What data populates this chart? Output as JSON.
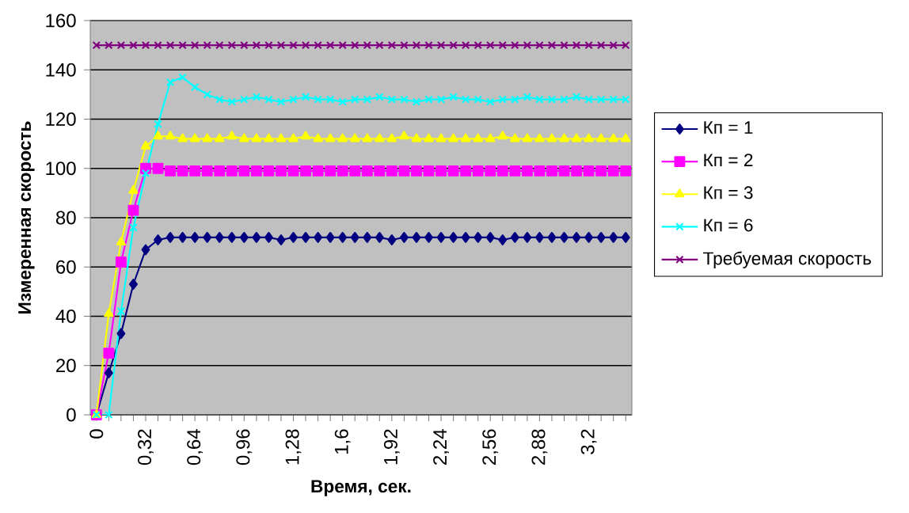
{
  "chart_data": {
    "type": "line",
    "xlabel": "Время, сек.",
    "ylabel": "Измеренная скорость",
    "categories": [
      "0",
      null,
      null,
      null,
      "0,32",
      null,
      null,
      null,
      "0,64",
      null,
      null,
      null,
      "0,96",
      null,
      null,
      null,
      "1,28",
      null,
      null,
      null,
      "1,6",
      null,
      null,
      null,
      "1,92",
      null,
      null,
      null,
      "2,24",
      null,
      null,
      null,
      "2,56",
      null,
      null,
      null,
      "2,88",
      null,
      null,
      null,
      "3,2",
      null,
      null,
      null
    ],
    "series": [
      {
        "name": "Кп = 1",
        "color": "#000080",
        "marker": "diamond",
        "values": [
          0,
          17,
          33,
          53,
          67,
          71,
          72,
          72,
          72,
          72,
          72,
          72,
          72,
          72,
          72,
          71,
          72,
          72,
          72,
          72,
          72,
          72,
          72,
          72,
          71,
          72,
          72,
          72,
          72,
          72,
          72,
          72,
          72,
          71,
          72,
          72,
          72,
          72,
          72,
          72,
          72,
          72,
          72,
          72
        ]
      },
      {
        "name": "Кп = 2",
        "color": "#ff00ff",
        "marker": "square",
        "values": [
          0,
          25,
          62,
          83,
          100,
          100,
          99,
          99,
          99,
          99,
          99,
          99,
          99,
          99,
          99,
          99,
          99,
          99,
          99,
          99,
          99,
          99,
          99,
          99,
          99,
          99,
          99,
          99,
          99,
          99,
          99,
          99,
          99,
          99,
          99,
          99,
          99,
          99,
          99,
          99,
          99,
          99,
          99,
          99
        ]
      },
      {
        "name": "Кп = 3",
        "color": "#ffff00",
        "marker": "triangle",
        "values": [
          0,
          41,
          70,
          91,
          109,
          113,
          113,
          112,
          112,
          112,
          112,
          113,
          112,
          112,
          112,
          112,
          112,
          113,
          112,
          112,
          112,
          112,
          112,
          112,
          112,
          113,
          112,
          112,
          112,
          112,
          112,
          112,
          112,
          113,
          112,
          112,
          112,
          112,
          112,
          112,
          112,
          112,
          112,
          112
        ]
      },
      {
        "name": "Кп = 6",
        "color": "#00ffff",
        "marker": "cross",
        "values": [
          0,
          0,
          42,
          76,
          98,
          118,
          135,
          137,
          133,
          130,
          128,
          127,
          128,
          129,
          128,
          127,
          128,
          129,
          128,
          128,
          127,
          128,
          128,
          129,
          128,
          128,
          127,
          128,
          128,
          129,
          128,
          128,
          127,
          128,
          128,
          129,
          128,
          128,
          128,
          129,
          128,
          128,
          128,
          128
        ]
      },
      {
        "name": "Требуемая скорость",
        "color": "#800080",
        "marker": "cross",
        "values": [
          150,
          150,
          150,
          150,
          150,
          150,
          150,
          150,
          150,
          150,
          150,
          150,
          150,
          150,
          150,
          150,
          150,
          150,
          150,
          150,
          150,
          150,
          150,
          150,
          150,
          150,
          150,
          150,
          150,
          150,
          150,
          150,
          150,
          150,
          150,
          150,
          150,
          150,
          150,
          150,
          150,
          150,
          150,
          150
        ]
      }
    ],
    "ylim": [
      0,
      160
    ],
    "yticks": [
      0,
      20,
      40,
      60,
      80,
      100,
      120,
      140,
      160
    ],
    "grid": "y",
    "legend": "right"
  }
}
